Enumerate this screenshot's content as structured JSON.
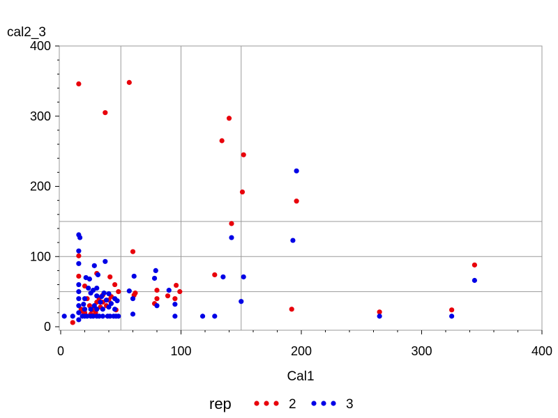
{
  "chart_data": {
    "type": "scatter",
    "title": "",
    "xlabel": "Cal1",
    "ylabel": "cal2_3",
    "xlim": [
      0,
      400
    ],
    "ylim": [
      0,
      400
    ],
    "x_ticks": [
      0,
      100,
      200,
      300,
      400
    ],
    "y_ticks": [
      0,
      100,
      200,
      300,
      400
    ],
    "reference_lines": {
      "x": [
        50,
        100,
        150
      ],
      "y": [
        50,
        100,
        150
      ]
    },
    "legend": {
      "title": "rep",
      "position": "bottom"
    },
    "series": [
      {
        "name": "2",
        "color": "#e8000b",
        "points": [
          [
            10,
            6
          ],
          [
            15,
            72
          ],
          [
            15,
            101
          ],
          [
            15,
            346
          ],
          [
            17,
            25
          ],
          [
            18,
            22
          ],
          [
            20,
            20
          ],
          [
            20,
            58
          ],
          [
            22,
            40
          ],
          [
            24,
            30
          ],
          [
            25,
            18
          ],
          [
            26,
            24
          ],
          [
            28,
            28
          ],
          [
            29,
            20
          ],
          [
            30,
            35
          ],
          [
            30,
            76
          ],
          [
            32,
            40
          ],
          [
            33,
            28
          ],
          [
            35,
            35
          ],
          [
            35,
            45
          ],
          [
            37,
            305
          ],
          [
            38,
            30
          ],
          [
            40,
            38
          ],
          [
            41,
            71
          ],
          [
            42,
            43
          ],
          [
            45,
            60
          ],
          [
            46,
            24
          ],
          [
            48,
            50
          ],
          [
            57,
            348
          ],
          [
            60,
            107
          ],
          [
            61,
            45
          ],
          [
            62,
            48
          ],
          [
            78,
            33
          ],
          [
            80,
            40
          ],
          [
            80,
            52
          ],
          [
            89,
            44
          ],
          [
            95,
            40
          ],
          [
            96,
            59
          ],
          [
            99,
            50
          ],
          [
            128,
            74
          ],
          [
            134,
            265
          ],
          [
            140,
            297
          ],
          [
            142,
            147
          ],
          [
            151,
            192
          ],
          [
            152,
            245
          ],
          [
            192,
            25
          ],
          [
            196,
            179
          ],
          [
            265,
            21
          ],
          [
            325,
            24
          ],
          [
            344,
            88
          ]
        ]
      },
      {
        "name": "3",
        "color": "#0000e6",
        "points": [
          [
            3,
            15
          ],
          [
            10,
            15
          ],
          [
            15,
            10
          ],
          [
            15,
            20
          ],
          [
            15,
            30
          ],
          [
            15,
            40
          ],
          [
            15,
            50
          ],
          [
            15,
            60
          ],
          [
            15,
            90
          ],
          [
            15,
            108
          ],
          [
            15,
            131
          ],
          [
            16,
            127
          ],
          [
            18,
            15
          ],
          [
            19,
            32
          ],
          [
            20,
            15
          ],
          [
            20,
            25
          ],
          [
            20,
            40
          ],
          [
            21,
            70
          ],
          [
            22,
            15
          ],
          [
            23,
            55
          ],
          [
            24,
            68
          ],
          [
            25,
            15
          ],
          [
            25,
            25
          ],
          [
            25,
            48
          ],
          [
            27,
            15
          ],
          [
            27,
            52
          ],
          [
            28,
            87
          ],
          [
            28,
            30
          ],
          [
            30,
            15
          ],
          [
            30,
            25
          ],
          [
            30,
            44
          ],
          [
            30,
            55
          ],
          [
            31,
            74
          ],
          [
            32,
            15
          ],
          [
            33,
            35
          ],
          [
            34,
            43
          ],
          [
            35,
            15
          ],
          [
            35,
            25
          ],
          [
            36,
            48
          ],
          [
            37,
            93
          ],
          [
            38,
            38
          ],
          [
            39,
            15
          ],
          [
            40,
            28
          ],
          [
            40,
            47
          ],
          [
            41,
            15
          ],
          [
            42,
            33
          ],
          [
            44,
            15
          ],
          [
            45,
            40
          ],
          [
            45,
            25
          ],
          [
            46,
            15
          ],
          [
            47,
            37
          ],
          [
            48,
            15
          ],
          [
            57,
            51
          ],
          [
            60,
            18
          ],
          [
            60,
            40
          ],
          [
            61,
            72
          ],
          [
            78,
            69
          ],
          [
            79,
            80
          ],
          [
            80,
            30
          ],
          [
            90,
            52
          ],
          [
            95,
            32
          ],
          [
            95,
            15
          ],
          [
            118,
            15
          ],
          [
            128,
            15
          ],
          [
            135,
            71
          ],
          [
            150,
            36
          ],
          [
            152,
            71
          ],
          [
            142,
            127
          ],
          [
            193,
            123
          ],
          [
            196,
            222
          ],
          [
            265,
            15
          ],
          [
            325,
            15
          ],
          [
            344,
            66
          ]
        ]
      }
    ]
  }
}
